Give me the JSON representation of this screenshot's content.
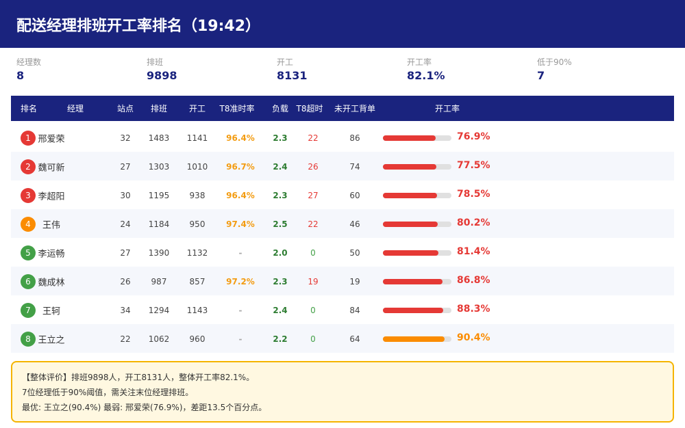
{
  "header": {
    "title": "配送经理排班开工率排名（19:42）"
  },
  "stats": [
    {
      "label": "经理数",
      "value": "8"
    },
    {
      "label": "排班",
      "value": "9898"
    },
    {
      "label": "开工",
      "value": "8131"
    },
    {
      "label": "开工率",
      "value": "82.1%"
    },
    {
      "label": "低于90%",
      "value": "7"
    }
  ],
  "table": {
    "columns": [
      "排名",
      "经理",
      "站点",
      "排班",
      "开工",
      "T8准时率",
      "负载",
      "T8超时",
      "未开工背单",
      "开工率"
    ],
    "rows": [
      {
        "rank": "1",
        "name": "邢爱荣",
        "station": "32",
        "shifts": "1483",
        "started": "1141",
        "t8": "96.4%",
        "load": "2.3",
        "late": "22",
        "pending": "86",
        "rate": "76.9%",
        "colors": {
          "rank": "#e53935",
          "t8": "#f39c12",
          "late": "#e53935",
          "rate": "#e53935"
        }
      },
      {
        "rank": "2",
        "name": "魏可新",
        "station": "27",
        "shifts": "1303",
        "started": "1010",
        "t8": "96.7%",
        "load": "2.4",
        "late": "26",
        "pending": "74",
        "rate": "77.5%",
        "colors": {
          "rank": "#e53935",
          "t8": "#f39c12",
          "late": "#e53935",
          "rate": "#e53935"
        }
      },
      {
        "rank": "3",
        "name": "李超阳",
        "station": "30",
        "shifts": "1195",
        "started": "938",
        "t8": "96.4%",
        "load": "2.3",
        "late": "27",
        "pending": "60",
        "rate": "78.5%",
        "colors": {
          "rank": "#e53935",
          "t8": "#f39c12",
          "late": "#e53935",
          "rate": "#e53935"
        }
      },
      {
        "rank": "4",
        "name": "王伟",
        "station": "24",
        "shifts": "1184",
        "started": "950",
        "t8": "97.4%",
        "load": "2.5",
        "late": "22",
        "pending": "46",
        "rate": "80.2%",
        "colors": {
          "rank": "#fb8c00",
          "t8": "#f39c12",
          "late": "#e53935",
          "rate": "#e53935"
        }
      },
      {
        "rank": "5",
        "name": "李运畅",
        "station": "27",
        "shifts": "1390",
        "started": "1132",
        "t8": "-",
        "load": "2.0",
        "late": "0",
        "pending": "50",
        "rate": "81.4%",
        "colors": {
          "rank": "#43a047",
          "t8": "#aaaaaa",
          "late": "#43a047",
          "rate": "#e53935"
        }
      },
      {
        "rank": "6",
        "name": "魏成林",
        "station": "26",
        "shifts": "987",
        "started": "857",
        "t8": "97.2%",
        "load": "2.3",
        "late": "19",
        "pending": "19",
        "rate": "86.8%",
        "colors": {
          "rank": "#43a047",
          "t8": "#f39c12",
          "late": "#e53935",
          "rate": "#e53935"
        }
      },
      {
        "rank": "7",
        "name": "王轲",
        "station": "34",
        "shifts": "1294",
        "started": "1143",
        "t8": "-",
        "load": "2.4",
        "late": "0",
        "pending": "84",
        "rate": "88.3%",
        "colors": {
          "rank": "#43a047",
          "t8": "#aaaaaa",
          "late": "#43a047",
          "rate": "#e53935"
        }
      },
      {
        "rank": "8",
        "name": "王立之",
        "station": "22",
        "shifts": "1062",
        "started": "960",
        "t8": "-",
        "load": "2.2",
        "late": "0",
        "pending": "64",
        "rate": "90.4%",
        "colors": {
          "rank": "#43a047",
          "t8": "#aaaaaa",
          "late": "#43a047",
          "rate": "#fb8c00"
        }
      }
    ]
  },
  "summary": [
    "【整体评价】排班9898人，开工8131人，整体开工率82.1%。",
    "7位经理低于90%阈值，需关注末位经理排班。",
    "最优: 王立之(90.4%)  最弱: 邢爱荣(76.9%)，差距13.5个百分点。"
  ]
}
